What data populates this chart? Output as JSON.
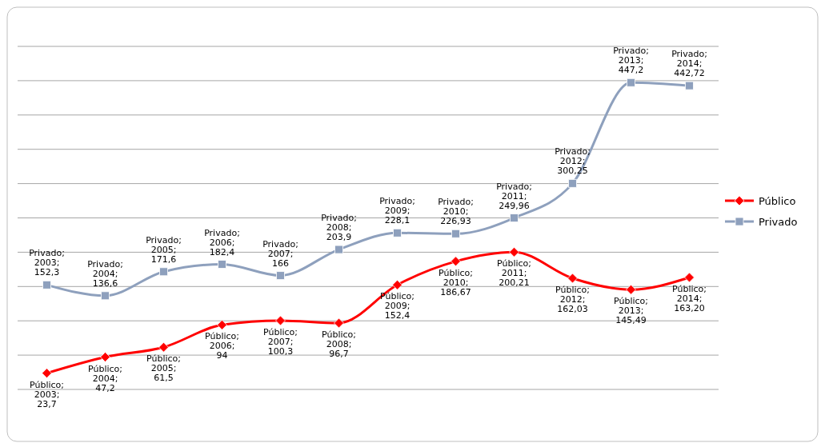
{
  "chart_data": {
    "type": "line",
    "categories": [
      null,
      null,
      null,
      null,
      null,
      null,
      null,
      null,
      null,
      null,
      null,
      null
    ],
    "ylim": [
      0,
      500
    ],
    "yticks": [
      {
        "value": 0,
        "label": null
      },
      {
        "value": 50,
        "label": null
      },
      {
        "value": 100,
        "label": null
      },
      {
        "value": 150,
        "label": null
      },
      {
        "value": 200,
        "label": null
      },
      {
        "value": 250,
        "label": null
      },
      {
        "value": 300,
        "label": null
      },
      {
        "value": 350,
        "label": null
      },
      {
        "value": 400,
        "label": null
      },
      {
        "value": 450,
        "label": null
      },
      {
        "value": 500,
        "label": null
      }
    ],
    "grid": "y",
    "legend": "right",
    "series": [
      {
        "name": "Público",
        "color": "#ff0000",
        "marker": "diamond",
        "values": [
          23.7,
          47.2,
          61.5,
          94,
          100.3,
          96.7,
          152.4,
          186.67,
          200.21,
          162.03,
          145.49,
          163.2
        ],
        "value_labels": [
          "Público; 2003; 23,7",
          "Público; 2004; 47,2",
          "Público; 2005; 61,5",
          "Público; 2006; 94",
          "Público; 2007; 100,3",
          "Público; 2008; 96,7",
          "Público; 2009; 152,4",
          "Público; 2010; 186,67",
          "Público; 2011; 200,21",
          "Público; 2012; 162,03",
          "Público; 2013; 145,49",
          "Público; 2014; 163,20"
        ]
      },
      {
        "name": "Privado",
        "color": "#8ea0bd",
        "marker": "square",
        "values": [
          152.3,
          136.6,
          171.6,
          182.4,
          166,
          203.9,
          228.1,
          226.93,
          249.96,
          300.25,
          447.2,
          442.72
        ],
        "value_labels": [
          "Privado; 2003; 152,3",
          "Privado; 2004; 136,6",
          "Privado; 2005; 171,6",
          "Privado; 2006; 182,4",
          "Privado; 2007; 166",
          "Privado; 2008; 203,9",
          "Privado; 2009; 228,1",
          "Privado; 2010; 226,93",
          "Privado; 2011; 249,96",
          "Privado; 2012; 300,25",
          "Privado; 2013; 447,2",
          "Privado; 2014; 442,72"
        ]
      }
    ]
  }
}
